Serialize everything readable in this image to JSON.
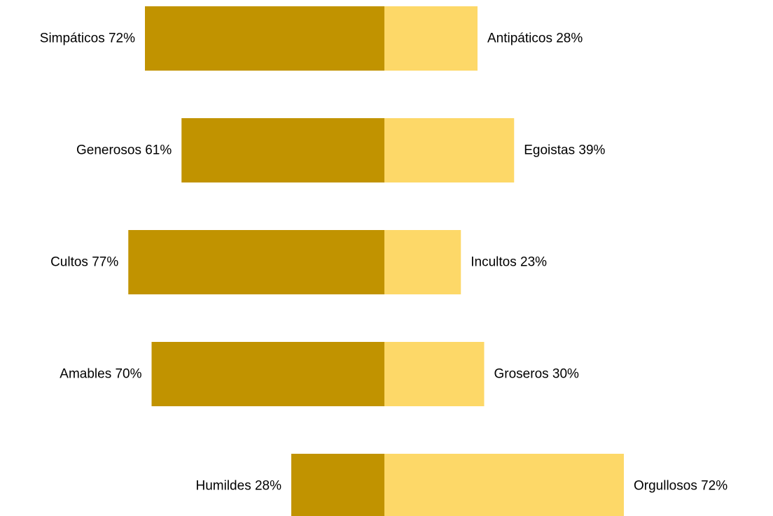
{
  "chart_data": {
    "type": "bar",
    "orientation": "horizontal",
    "stacked": "diverging",
    "categories": [
      "Simpáticos vs Antipáticos",
      "Generosos vs Egoistas",
      "Cultos vs Incultos",
      "Amables vs Groseros",
      "Humildes vs Orgullosos"
    ],
    "rows": [
      {
        "left_label": "Simpáticos 72%",
        "left_value": 72,
        "right_label": "Antipáticos 28%",
        "right_value": 28
      },
      {
        "left_label": "Generosos 61%",
        "left_value": 61,
        "right_label": "Egoistas 39%",
        "right_value": 39
      },
      {
        "left_label": "Cultos 77%",
        "left_value": 77,
        "right_label": "Incultos 23%",
        "right_value": 23
      },
      {
        "left_label": "Amables 70%",
        "left_value": 70,
        "right_label": "Groseros 30%",
        "right_value": 30
      },
      {
        "left_label": "Humildes 28%",
        "left_value": 28,
        "right_label": "Orgullosos 72%",
        "right_value": 72
      }
    ],
    "unit": "%",
    "grid": false,
    "legend": "none",
    "colors": {
      "left": "#c19300",
      "right": "#fdd868"
    }
  }
}
